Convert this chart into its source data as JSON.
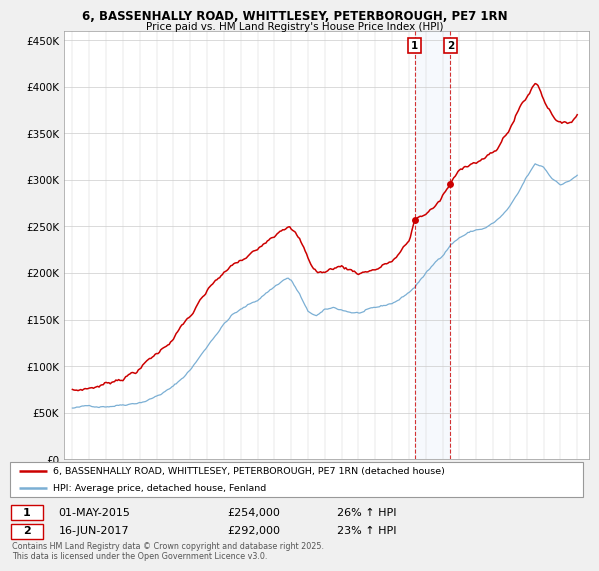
{
  "title": "6, BASSENHALLY ROAD, WHITTLESEY, PETERBOROUGH, PE7 1RN",
  "subtitle": "Price paid vs. HM Land Registry's House Price Index (HPI)",
  "legend_line1": "6, BASSENHALLY ROAD, WHITTLESEY, PETERBOROUGH, PE7 1RN (detached house)",
  "legend_line2": "HPI: Average price, detached house, Fenland",
  "transaction1_date": "01-MAY-2015",
  "transaction1_price": "£254,000",
  "transaction1_hpi": "26% ↑ HPI",
  "transaction2_date": "16-JUN-2017",
  "transaction2_price": "£292,000",
  "transaction2_hpi": "23% ↑ HPI",
  "footnote": "Contains HM Land Registry data © Crown copyright and database right 2025.\nThis data is licensed under the Open Government Licence v3.0.",
  "red_color": "#cc0000",
  "blue_color": "#7bafd4",
  "background_color": "#f0f0f0",
  "plot_bg_color": "#ffffff",
  "grid_color": "#cccccc",
  "ylim": [
    0,
    460000
  ],
  "yticks": [
    0,
    50000,
    100000,
    150000,
    200000,
    250000,
    300000,
    350000,
    400000,
    450000
  ],
  "year_start": 1995,
  "year_end": 2025,
  "transaction1_year": 2015.33,
  "transaction2_year": 2017.46
}
